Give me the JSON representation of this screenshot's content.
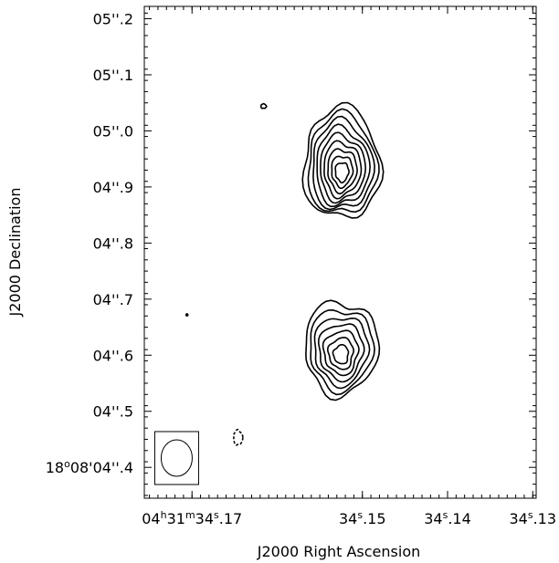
{
  "chart_data": {
    "type": "contour",
    "xlabel": "J2000 Right Ascension",
    "ylabel": "J2000 Declination",
    "x_ticks": [
      {
        "ra_seconds": 34.17,
        "parts": [
          {
            "t": "04",
            "sup": false
          },
          {
            "t": "h",
            "sup": true
          },
          {
            "t": "31",
            "sup": false
          },
          {
            "t": "m",
            "sup": true
          },
          {
            "t": "34",
            "sup": false
          },
          {
            "t": "s",
            "sup": true
          },
          {
            "t": ".17",
            "sup": false
          }
        ]
      },
      {
        "ra_seconds": 34.15,
        "parts": [
          {
            "t": "34",
            "sup": false
          },
          {
            "t": "s",
            "sup": true
          },
          {
            "t": ".15",
            "sup": false
          }
        ]
      },
      {
        "ra_seconds": 34.14,
        "parts": [
          {
            "t": "34",
            "sup": false
          },
          {
            "t": "s",
            "sup": true
          },
          {
            "t": ".14",
            "sup": false
          }
        ]
      },
      {
        "ra_seconds": 34.13,
        "parts": [
          {
            "t": "34",
            "sup": false
          },
          {
            "t": "s",
            "sup": true
          },
          {
            "t": ".13",
            "sup": false
          }
        ]
      }
    ],
    "y_ticks": [
      {
        "dec_arcsec": 4.4,
        "parts": [
          {
            "t": "18",
            "sup": false
          },
          {
            "t": "o",
            "sup": true
          },
          {
            "t": "08'04''.4",
            "sup": false
          }
        ]
      },
      {
        "dec_arcsec": 4.5,
        "label": "04''.5"
      },
      {
        "dec_arcsec": 4.6,
        "label": "04''.6"
      },
      {
        "dec_arcsec": 4.7,
        "label": "04''.7"
      },
      {
        "dec_arcsec": 4.8,
        "label": "04''.8"
      },
      {
        "dec_arcsec": 4.9,
        "label": "04''.9"
      },
      {
        "dec_arcsec": 5.0,
        "label": "05''.0"
      },
      {
        "dec_arcsec": 5.1,
        "label": "05''.1"
      },
      {
        "dec_arcsec": 5.2,
        "label": "05''.2"
      }
    ],
    "x_range_ra_seconds": [
      34.1756,
      34.1296
    ],
    "y_range_dec_arcsec": [
      4.345,
      5.222
    ],
    "sources": [
      {
        "ra_seconds": 34.1524,
        "dec_arcsec": 4.941,
        "n_levels": 9,
        "outer_radius_ra_s": 0.0045,
        "outer_radius_dec_arcsec": 0.099
      },
      {
        "ra_seconds": 34.1525,
        "dec_arcsec": 4.613,
        "n_levels": 7,
        "outer_radius_ra_s": 0.0043,
        "outer_radius_dec_arcsec": 0.083
      }
    ],
    "negative_contours": [
      {
        "ra_seconds": 34.1646,
        "dec_arcsec": 4.453
      }
    ],
    "noise_contours": [
      {
        "ra_seconds": 34.1616,
        "dec_arcsec": 5.044
      },
      {
        "ra_seconds": 34.1706,
        "dec_arcsec": 4.672
      }
    ],
    "beam": {
      "ra_seconds": 34.1718,
      "dec_arcsec": 4.415
    }
  }
}
